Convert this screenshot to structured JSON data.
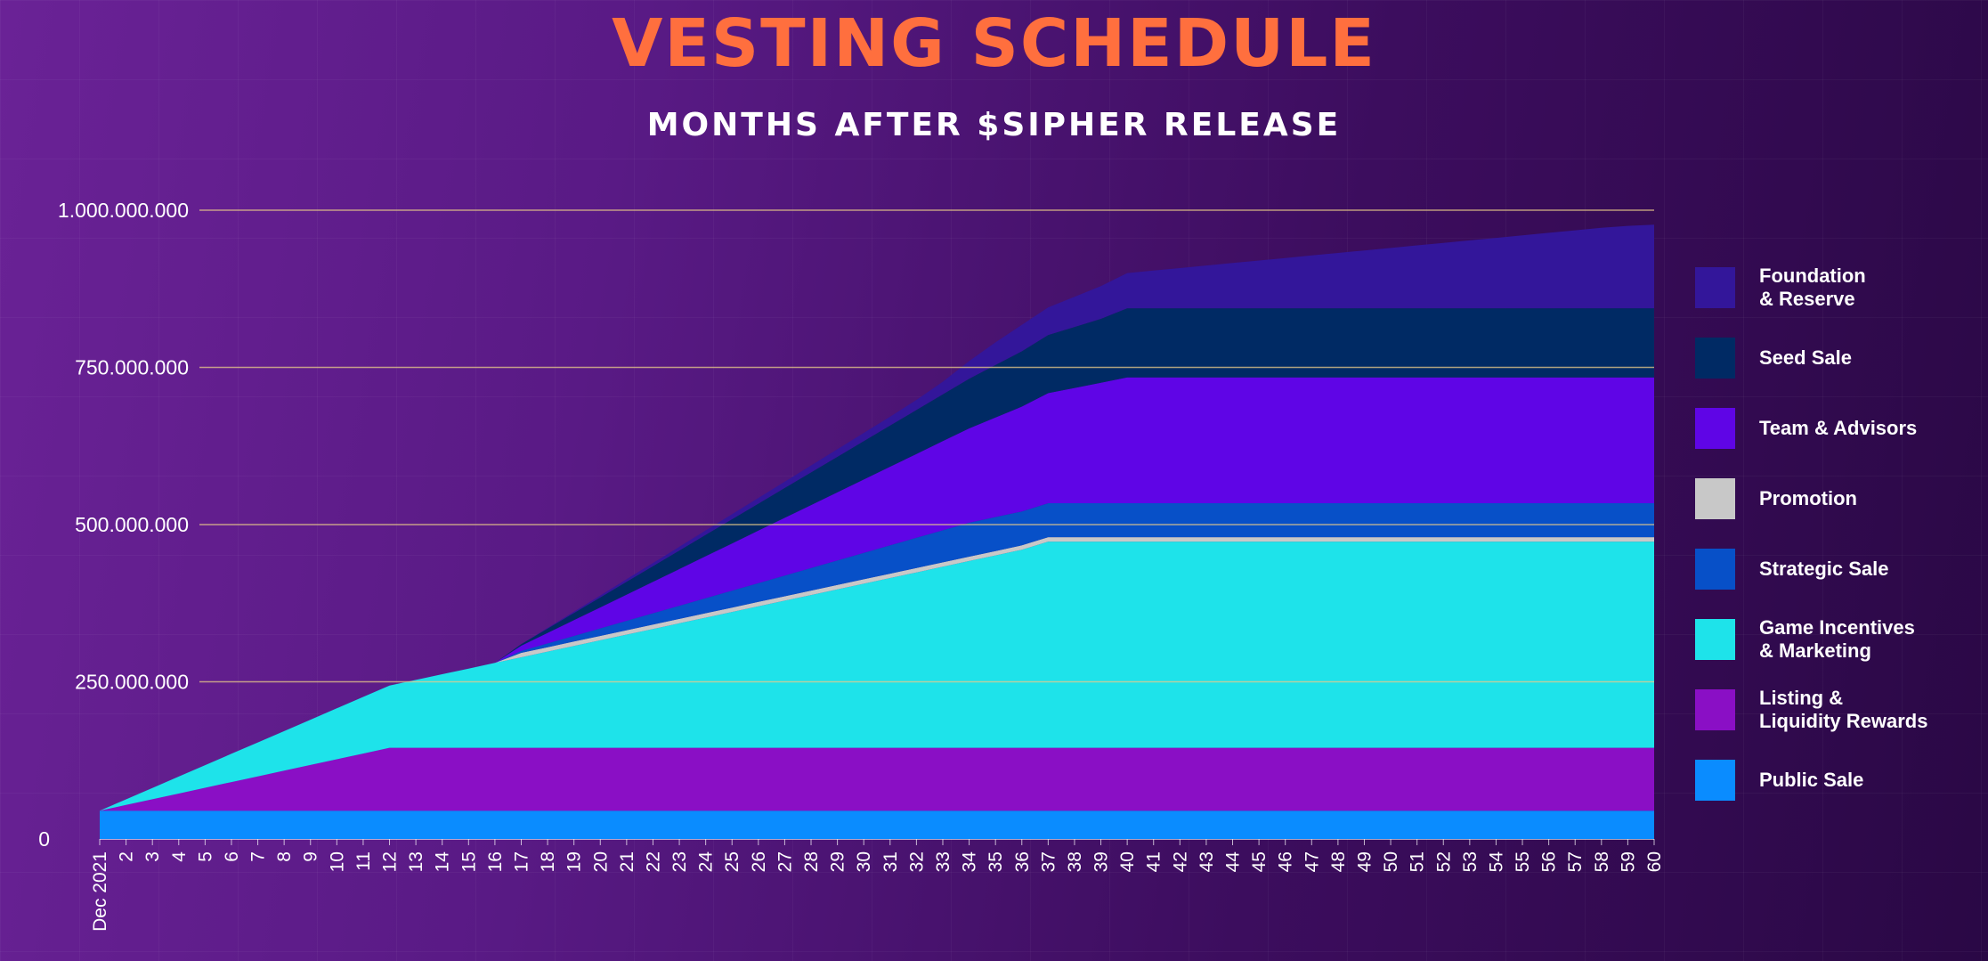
{
  "chart_data": {
    "type": "area",
    "stacked": true,
    "title": "VESTING SCHEDULE",
    "subtitle": "MONTHS AFTER $SIPHER RELEASE",
    "x": [
      "Dec 2021",
      "2",
      "3",
      "4",
      "5",
      "6",
      "7",
      "8",
      "9",
      "10",
      "11",
      "12",
      "13",
      "14",
      "15",
      "16",
      "17",
      "18",
      "19",
      "20",
      "21",
      "22",
      "23",
      "24",
      "25",
      "26",
      "27",
      "28",
      "29",
      "30",
      "31",
      "32",
      "33",
      "34",
      "35",
      "36",
      "37",
      "38",
      "39",
      "40",
      "41",
      "42",
      "43",
      "44",
      "45",
      "46",
      "47",
      "48",
      "49",
      "50",
      "51",
      "52",
      "53",
      "54",
      "55",
      "56",
      "57",
      "58",
      "59",
      "60"
    ],
    "y_ticks": [
      0,
      250000000,
      500000000,
      750000000,
      1000000000
    ],
    "y_tick_labels": [
      "0",
      "250.000.000",
      "500.000.000",
      "750.000.000",
      "1.000.000.000"
    ],
    "ylim": [
      0,
      1000000000
    ],
    "grid": "horizontal lines at tick values",
    "legend_position": "right",
    "series": [
      {
        "name": "Public Sale",
        "color": "#0a8cff",
        "values": [
          45000000,
          45000000,
          45000000,
          45000000,
          45000000,
          45000000,
          45000000,
          45000000,
          45000000,
          45000000,
          45000000,
          45000000,
          45000000,
          45000000,
          45000000,
          45000000,
          45000000,
          45000000,
          45000000,
          45000000,
          45000000,
          45000000,
          45000000,
          45000000,
          45000000,
          45000000,
          45000000,
          45000000,
          45000000,
          45000000,
          45000000,
          45000000,
          45000000,
          45000000,
          45000000,
          45000000,
          45000000,
          45000000,
          45000000,
          45000000,
          45000000,
          45000000,
          45000000,
          45000000,
          45000000,
          45000000,
          45000000,
          45000000,
          45000000,
          45000000,
          45000000,
          45000000,
          45000000,
          45000000,
          45000000,
          45000000,
          45000000,
          45000000,
          45000000,
          45000000
        ]
      },
      {
        "name": "Listing & Liquidity Rewards",
        "color": "#8a0fc5",
        "values": [
          0,
          9100000,
          18200000,
          27300000,
          36400000,
          45500000,
          54500000,
          63600000,
          72700000,
          81800000,
          90900000,
          100000000,
          100000000,
          100000000,
          100000000,
          100000000,
          100000000,
          100000000,
          100000000,
          100000000,
          100000000,
          100000000,
          100000000,
          100000000,
          100000000,
          100000000,
          100000000,
          100000000,
          100000000,
          100000000,
          100000000,
          100000000,
          100000000,
          100000000,
          100000000,
          100000000,
          100000000,
          100000000,
          100000000,
          100000000,
          100000000,
          100000000,
          100000000,
          100000000,
          100000000,
          100000000,
          100000000,
          100000000,
          100000000,
          100000000,
          100000000,
          100000000,
          100000000,
          100000000,
          100000000,
          100000000,
          100000000,
          100000000,
          100000000,
          100000000
        ]
      },
      {
        "name": "Game Incentives & Marketing",
        "color": "#1ee3ea",
        "values": [
          0,
          9000000,
          18000000,
          27000000,
          36000000,
          45000000,
          54000000,
          63000000,
          72000000,
          81000000,
          90000000,
          99000000,
          108000000,
          117000000,
          126000000,
          135000000,
          144000000,
          153000000,
          162000000,
          171000000,
          180000000,
          189000000,
          198000000,
          207000000,
          216000000,
          225000000,
          234000000,
          243000000,
          252000000,
          261000000,
          270000000,
          279000000,
          288000000,
          297000000,
          306000000,
          315000000,
          328000000,
          328000000,
          328000000,
          328000000,
          328000000,
          328000000,
          328000000,
          328000000,
          328000000,
          328000000,
          328000000,
          328000000,
          328000000,
          328000000,
          328000000,
          328000000,
          328000000,
          328000000,
          328000000,
          328000000,
          328000000,
          328000000,
          328000000,
          328000000
        ]
      },
      {
        "name": "Promotion",
        "color": "#c8c8c8",
        "values": [
          0,
          0,
          0,
          0,
          0,
          0,
          0,
          0,
          0,
          0,
          0,
          0,
          0,
          0,
          0,
          0,
          7000000,
          7000000,
          7000000,
          7000000,
          7000000,
          7000000,
          7000000,
          7000000,
          7000000,
          7000000,
          7000000,
          7000000,
          7000000,
          7000000,
          7000000,
          7000000,
          7000000,
          7000000,
          7000000,
          7000000,
          7000000,
          7000000,
          7000000,
          7000000,
          7000000,
          7000000,
          7000000,
          7000000,
          7000000,
          7000000,
          7000000,
          7000000,
          7000000,
          7000000,
          7000000,
          7000000,
          7000000,
          7000000,
          7000000,
          7000000,
          7000000,
          7000000,
          7000000,
          7000000
        ]
      },
      {
        "name": "Strategic Sale",
        "color": "#0750c8",
        "values": [
          0,
          0,
          0,
          0,
          0,
          0,
          0,
          0,
          0,
          0,
          0,
          0,
          0,
          0,
          0,
          0,
          3000000,
          6000000,
          9000000,
          12000000,
          15000000,
          18000000,
          21000000,
          24000000,
          27000000,
          30000000,
          33000000,
          36000000,
          39000000,
          42000000,
          45000000,
          48000000,
          51000000,
          54000000,
          54000000,
          54000000,
          54000000,
          54000000,
          54000000,
          54000000,
          54000000,
          54000000,
          54000000,
          54000000,
          54000000,
          54000000,
          54000000,
          54000000,
          54000000,
          54000000,
          54000000,
          54000000,
          54000000,
          54000000,
          54000000,
          54000000,
          54000000,
          54000000,
          54000000,
          54000000
        ]
      },
      {
        "name": "Team & Advisors",
        "color": "#5f05e6",
        "values": [
          0,
          0,
          0,
          0,
          0,
          0,
          0,
          0,
          0,
          0,
          0,
          0,
          0,
          0,
          0,
          0,
          8300000,
          16700000,
          25000000,
          33300000,
          41700000,
          50000000,
          58300000,
          66700000,
          75000000,
          83300000,
          91700000,
          100000000,
          108300000,
          116700000,
          125000000,
          133300000,
          141700000,
          150000000,
          158300000,
          166700000,
          175000000,
          183300000,
          191700000,
          200000000,
          200000000,
          200000000,
          200000000,
          200000000,
          200000000,
          200000000,
          200000000,
          200000000,
          200000000,
          200000000,
          200000000,
          200000000,
          200000000,
          200000000,
          200000000,
          200000000,
          200000000,
          200000000,
          200000000,
          200000000
        ]
      },
      {
        "name": "Seed Sale",
        "color": "#002a64",
        "values": [
          0,
          0,
          0,
          0,
          0,
          0,
          0,
          0,
          0,
          0,
          0,
          0,
          0,
          0,
          0,
          0,
          2500000,
          7000000,
          11500000,
          16000000,
          20500000,
          25000000,
          29500000,
          34000000,
          38500000,
          43000000,
          47500000,
          52000000,
          56500000,
          61000000,
          65500000,
          70000000,
          74500000,
          79000000,
          83500000,
          88000000,
          92500000,
          97000000,
          101500000,
          110000000,
          110000000,
          110000000,
          110000000,
          110000000,
          110000000,
          110000000,
          110000000,
          110000000,
          110000000,
          110000000,
          110000000,
          110000000,
          110000000,
          110000000,
          110000000,
          110000000,
          110000000,
          110000000,
          110000000,
          110000000
        ]
      },
      {
        "name": "Foundation & Reserve",
        "color": "#33169a",
        "values": [
          0,
          0,
          0,
          0,
          0,
          0,
          0,
          0,
          0,
          0,
          0,
          0,
          0,
          0,
          0,
          0,
          0,
          1000000,
          2000000,
          3000000,
          4000000,
          5000000,
          6000000,
          7000000,
          8000000,
          9000000,
          10000000,
          11000000,
          12000000,
          13000000,
          14000000,
          16000000,
          20000000,
          28000000,
          36000000,
          42000000,
          44000000,
          48000000,
          52000000,
          56000000,
          60000000,
          64000000,
          68000000,
          72000000,
          76000000,
          80000000,
          84000000,
          88000000,
          92000000,
          96000000,
          100000000,
          104000000,
          108000000,
          112000000,
          116000000,
          120000000,
          124000000,
          128000000,
          131000000,
          133000000
        ]
      }
    ]
  },
  "legend": [
    {
      "label": "Foundation\n& Reserve",
      "color": "#33169a"
    },
    {
      "label": "Seed Sale",
      "color": "#002a64"
    },
    {
      "label": "Team & Advisors",
      "color": "#5f05e6"
    },
    {
      "label": "Promotion",
      "color": "#c8c8c8"
    },
    {
      "label": "Strategic Sale",
      "color": "#0750c8"
    },
    {
      "label": "Game Incentives\n& Marketing",
      "color": "#1ee3ea"
    },
    {
      "label": "Listing &\nLiquidity Rewards",
      "color": "#8a0fc5"
    },
    {
      "label": "Public Sale",
      "color": "#0a8cff"
    }
  ],
  "colors": {
    "title": "#ff6f3e",
    "subtitle": "#ffffff",
    "gridline": "#e8c98a",
    "axis_text": "#ffffff"
  }
}
